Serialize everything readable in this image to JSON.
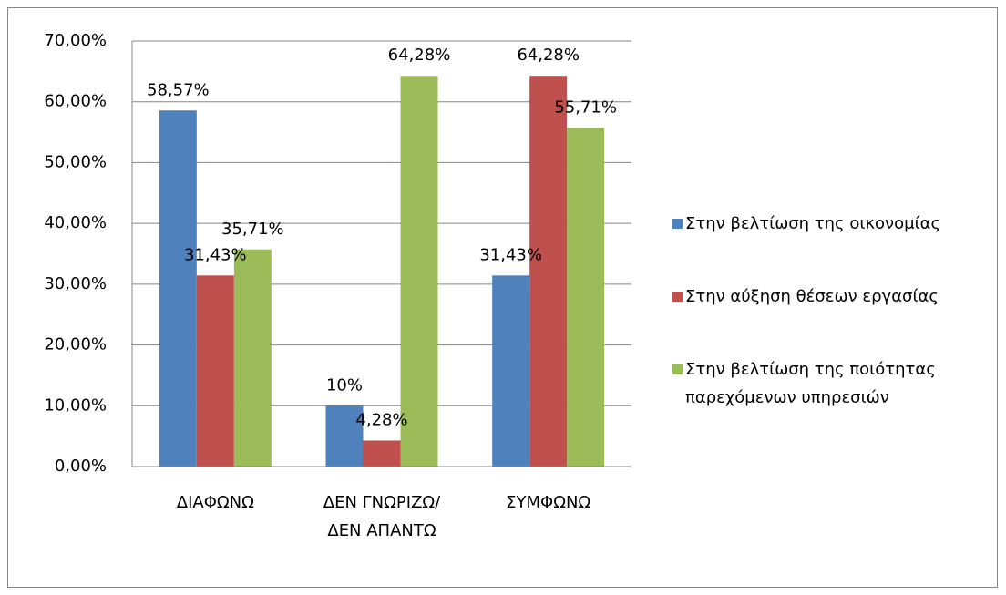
{
  "chart_data": {
    "type": "bar",
    "categories": [
      "ΔΙΑΦΩΝΩ",
      "ΔΕΝ ΓΝΩΡΙΖΩ/ΔΕΝ ΑΠΑΝΤΩ",
      "ΣΥΜΦΩΝΩ"
    ],
    "series": [
      {
        "name": "Στην βελτίωση της οικονομίας",
        "color": "#4f81bd",
        "values": [
          58.57,
          10,
          31.43
        ],
        "value_labels": [
          "58,57%",
          "10%",
          "31,43%"
        ]
      },
      {
        "name": "Στην αύξηση θέσεων εργασίας",
        "color": "#c0504d",
        "values": [
          31.43,
          4.28,
          64.28
        ],
        "value_labels": [
          "31,43%",
          "4,28%",
          "64,28%"
        ]
      },
      {
        "name": "Στην βελτίωση της ποιότητας παρεχόμενων υπηρεσιών",
        "color": "#9bbb59",
        "values": [
          35.71,
          64.28,
          55.71
        ],
        "value_labels": [
          "35,71%",
          "64,28%",
          "55,71%"
        ]
      }
    ],
    "ylim": [
      0,
      70
    ],
    "yticks": [
      {
        "value": 0,
        "label": "0,00%"
      },
      {
        "value": 10,
        "label": "10,00%"
      },
      {
        "value": 20,
        "label": "20,00%"
      },
      {
        "value": 30,
        "label": "30,00%"
      },
      {
        "value": 40,
        "label": "40,00%"
      },
      {
        "value": 50,
        "label": "50,00%"
      },
      {
        "value": 60,
        "label": "60,00%"
      },
      {
        "value": 70,
        "label": "70,00%"
      }
    ],
    "grid": true,
    "legend": "right"
  }
}
